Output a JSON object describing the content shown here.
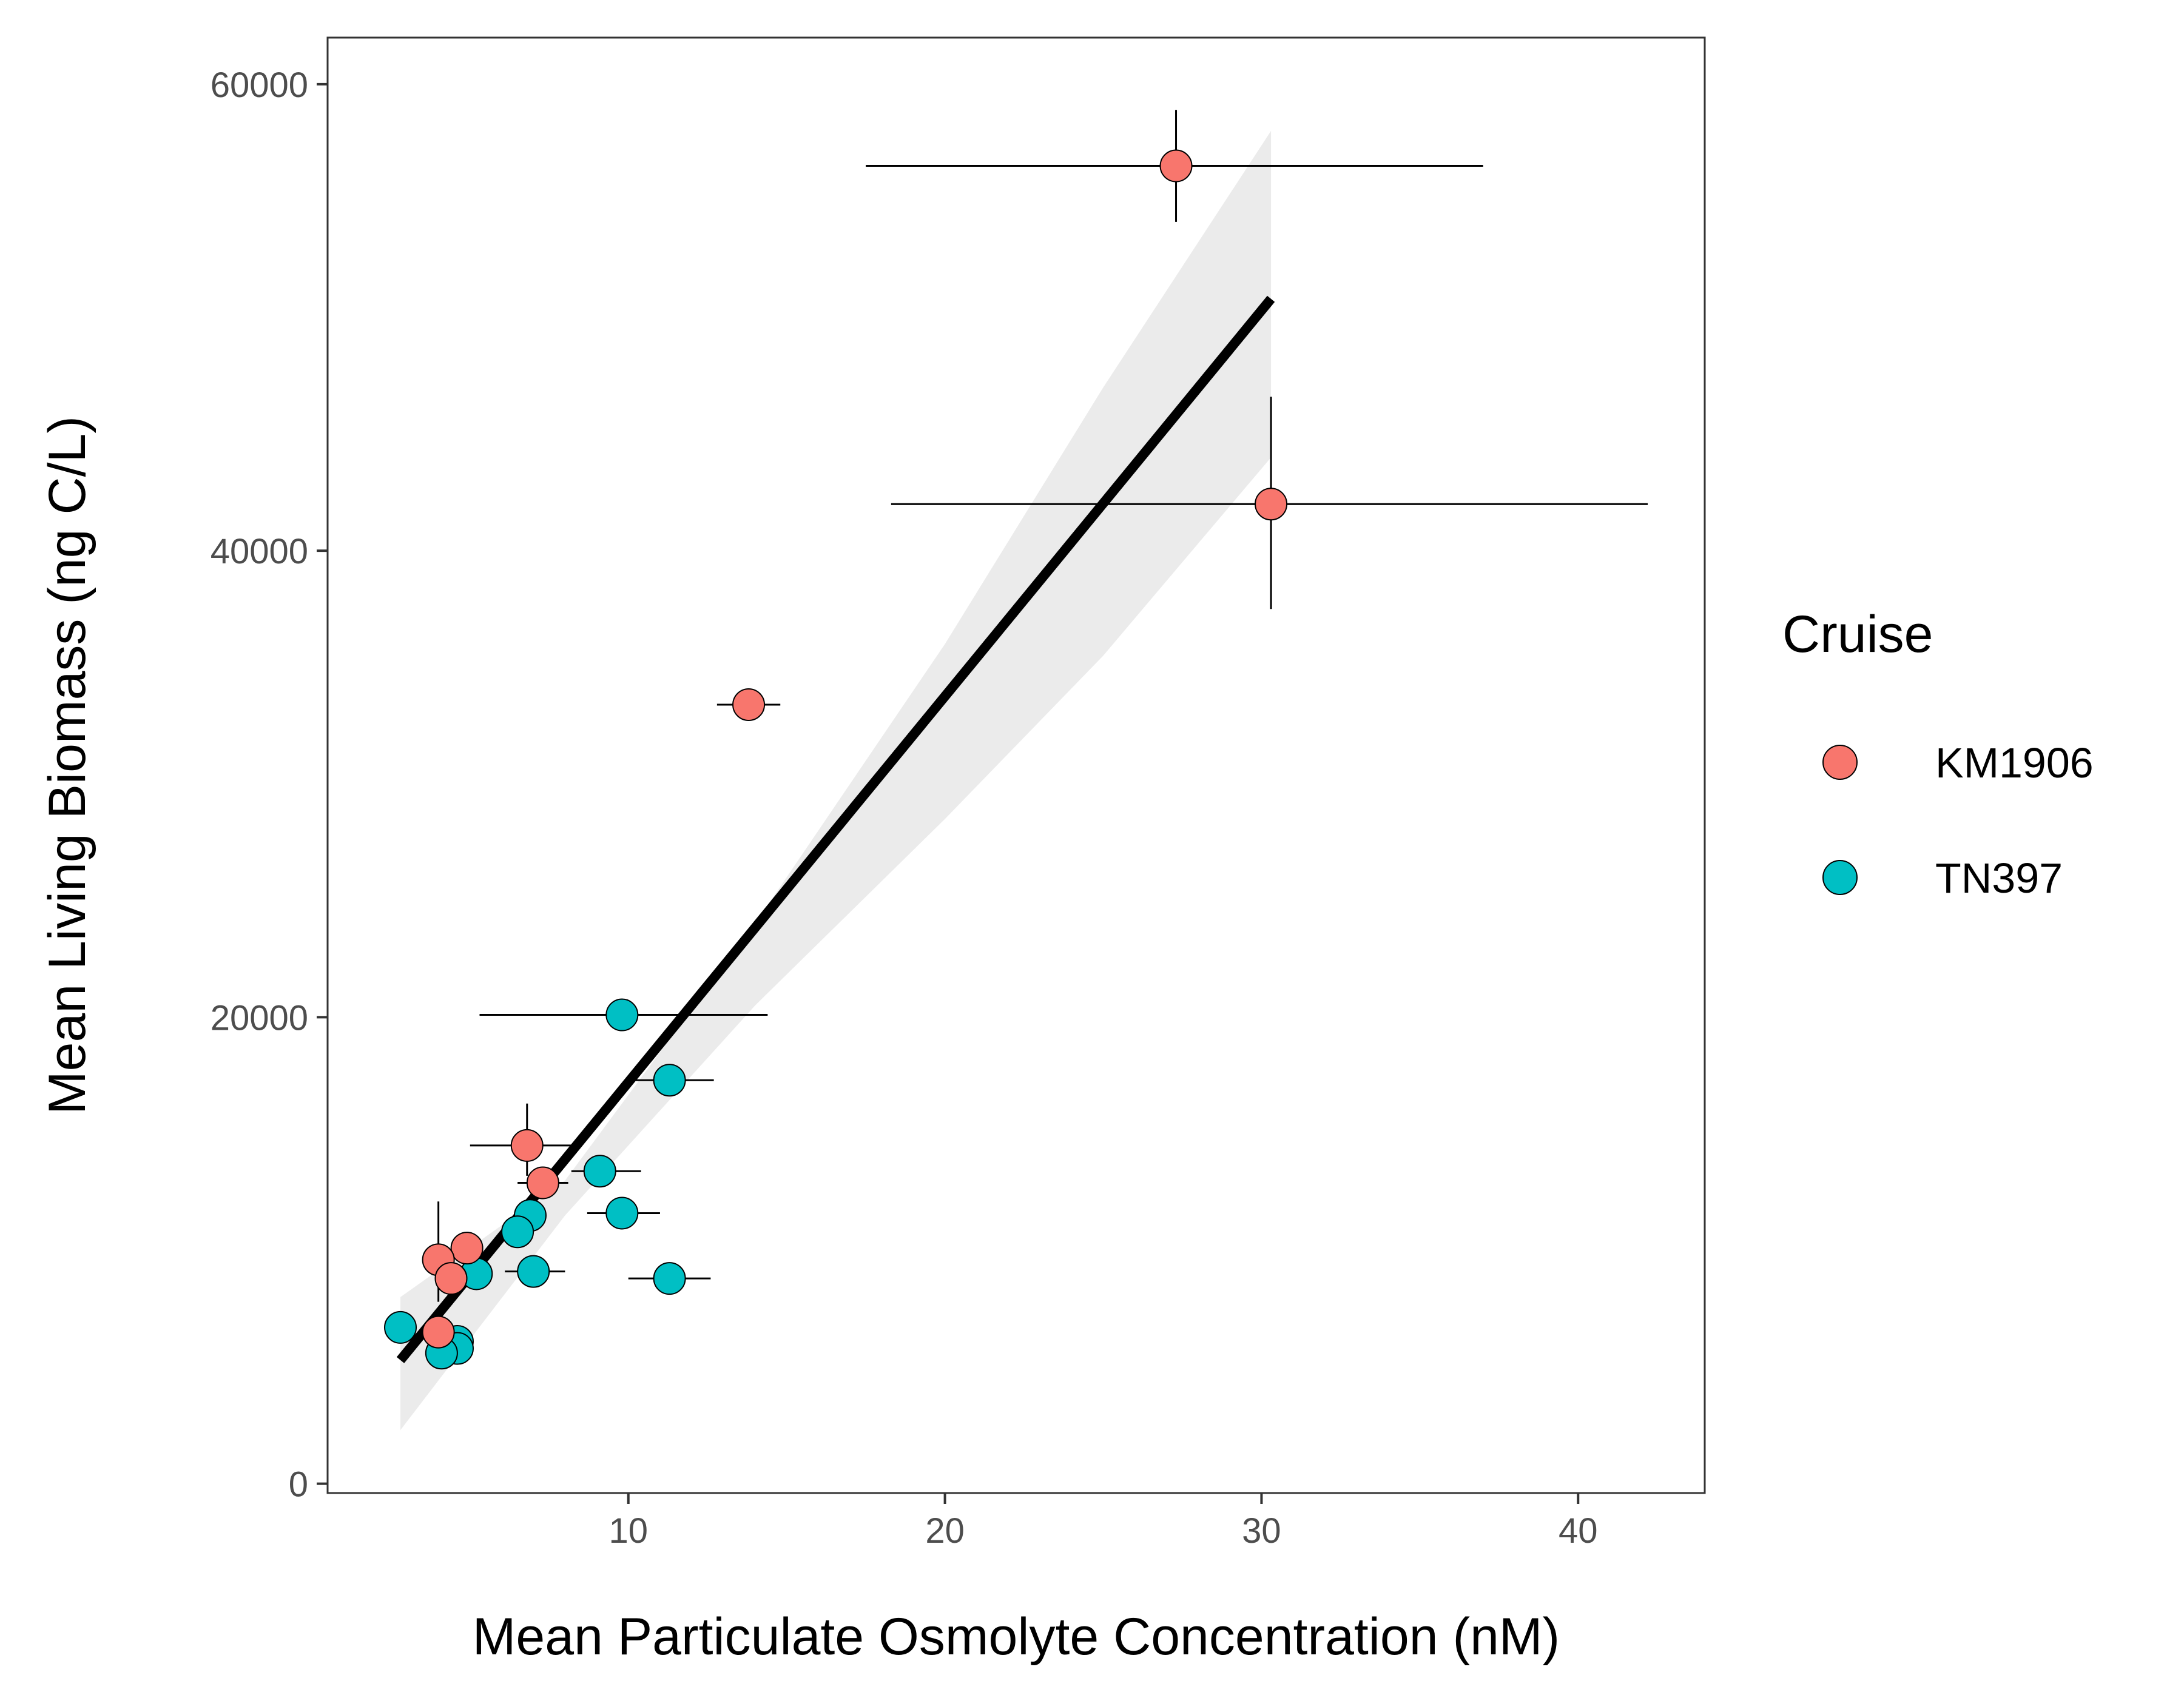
{
  "chart_data": {
    "type": "scatter",
    "title": "",
    "xlabel": "Mean Particulate Osmolyte Concentration (nM)",
    "ylabel": "Mean Living Biomass (ng C/L)",
    "xlim": [
      0.5,
      44
    ],
    "ylim": [
      -400,
      62000
    ],
    "xticks": [
      10,
      20,
      30,
      40
    ],
    "yticks": [
      0,
      20000,
      40000,
      60000
    ],
    "grid": false,
    "legend": {
      "title": "Cruise",
      "position": "right"
    },
    "series": [
      {
        "name": "KM1906",
        "color": "#F8766D",
        "points": [
          {
            "x": 27.3,
            "y": 56500,
            "xerr": [
              17.5,
              37.0
            ],
            "yerr": [
              54100,
              58900
            ]
          },
          {
            "x": 30.3,
            "y": 42000,
            "xerr": [
              18.3,
              42.2
            ],
            "yerr": [
              37500,
              46600
            ]
          },
          {
            "x": 13.8,
            "y": 33400,
            "xerr": [
              12.8,
              14.8
            ]
          },
          {
            "x": 6.8,
            "y": 14500,
            "xerr": [
              5.0,
              8.4
            ],
            "yerr": [
              13200,
              16300
            ]
          },
          {
            "x": 7.3,
            "y": 12900,
            "xerr": [
              6.5,
              8.1
            ]
          },
          {
            "x": 4.9,
            "y": 10100
          },
          {
            "x": 4.0,
            "y": 9600,
            "yerr": [
              7800,
              12100
            ]
          },
          {
            "x": 4.4,
            "y": 8800
          },
          {
            "x": 4.0,
            "y": 6500,
            "yerr": [
              5500,
              7500
            ]
          }
        ]
      },
      {
        "name": "TN397",
        "color": "#00BFC4",
        "points": [
          {
            "x": 9.8,
            "y": 20100,
            "xerr": [
              5.3,
              14.4
            ]
          },
          {
            "x": 11.3,
            "y": 17300,
            "xerr": [
              10.0,
              12.7
            ]
          },
          {
            "x": 9.1,
            "y": 13400,
            "xerr": [
              8.2,
              10.4
            ]
          },
          {
            "x": 9.8,
            "y": 11600,
            "xerr": [
              8.7,
              11.0
            ]
          },
          {
            "x": 6.9,
            "y": 11500
          },
          {
            "x": 6.5,
            "y": 10800
          },
          {
            "x": 5.2,
            "y": 9000
          },
          {
            "x": 7.0,
            "y": 9100,
            "xerr": [
              6.1,
              8.0
            ]
          },
          {
            "x": 11.3,
            "y": 8800,
            "xerr": [
              10.0,
              12.6
            ]
          },
          {
            "x": 2.8,
            "y": 6700
          },
          {
            "x": 4.6,
            "y": 6100
          },
          {
            "x": 4.6,
            "y": 5800
          },
          {
            "x": 4.1,
            "y": 5600
          }
        ]
      }
    ],
    "fit": {
      "type": "linear",
      "color": "#000000",
      "band_color": "#ebebeb",
      "line": [
        [
          2.8,
          5300
        ],
        [
          30.3,
          50800
        ]
      ],
      "band_upper": [
        [
          2.8,
          8000
        ],
        [
          8,
          13000
        ],
        [
          14,
          24000
        ],
        [
          20,
          36000
        ],
        [
          25,
          47000
        ],
        [
          30.3,
          58000
        ]
      ],
      "band_lower": [
        [
          2.8,
          2300
        ],
        [
          8,
          11500
        ],
        [
          14,
          20500
        ],
        [
          20,
          28500
        ],
        [
          25,
          35500
        ],
        [
          30.3,
          44000
        ]
      ]
    }
  }
}
